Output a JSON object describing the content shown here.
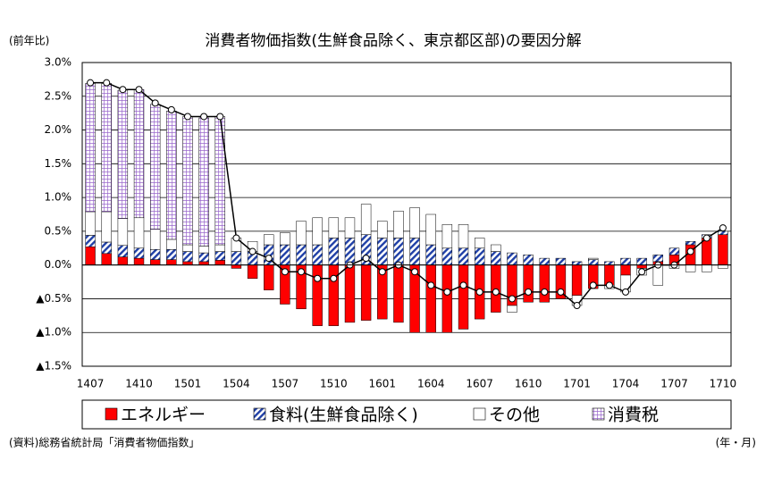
{
  "chart_data": {
    "type": "stacked_bar_line",
    "title": "消費者物価指数(生鮮食品除く、東京都区部)の要因分解",
    "y_unit_label": "(前年比)",
    "source": "(資料)総務省統計局「消費者物価指数」",
    "x_unit_label": "(年・月)",
    "categories": [
      "1407",
      null,
      null,
      "1410",
      null,
      null,
      "1501",
      null,
      null,
      "1504",
      null,
      null,
      "1507",
      null,
      null,
      "1510",
      null,
      null,
      "1601",
      null,
      null,
      "1604",
      null,
      null,
      "1607",
      null,
      null,
      "1610",
      null,
      null,
      "1701",
      null,
      null,
      "1704",
      null,
      null,
      "1707",
      null,
      null,
      "1710"
    ],
    "series": [
      {
        "name": "エネルギー",
        "color": "#ff0000",
        "pattern": "solid",
        "values": [
          0.27,
          0.17,
          0.12,
          0.1,
          0.08,
          0.08,
          0.05,
          0.05,
          0.07,
          -0.05,
          -0.2,
          -0.37,
          -0.58,
          -0.65,
          -0.9,
          -0.9,
          -0.85,
          -0.82,
          -0.8,
          -0.85,
          -1.0,
          -1.0,
          -1.0,
          -0.95,
          -0.8,
          -0.7,
          -0.6,
          -0.55,
          -0.55,
          -0.5,
          -0.45,
          -0.35,
          -0.3,
          -0.15,
          -0.05,
          0.05,
          0.15,
          0.3,
          0.4,
          0.45
        ]
      },
      {
        "name": "食料(生鮮食品除く)",
        "color": "#1f3fa6",
        "pattern": "hatch",
        "values": [
          0.17,
          0.17,
          0.17,
          0.15,
          0.15,
          0.15,
          0.15,
          0.13,
          0.13,
          0.2,
          0.2,
          0.3,
          0.3,
          0.3,
          0.3,
          0.4,
          0.4,
          0.45,
          0.4,
          0.4,
          0.4,
          0.3,
          0.25,
          0.25,
          0.25,
          0.2,
          0.18,
          0.15,
          0.1,
          0.1,
          0.05,
          0.08,
          0.05,
          0.1,
          0.1,
          0.1,
          0.1,
          0.05,
          0.05,
          0.05
        ]
      },
      {
        "name": "その他",
        "color": "#ffffff",
        "pattern": "solid",
        "values": [
          0.35,
          0.45,
          0.4,
          0.45,
          0.3,
          0.15,
          0.1,
          0.1,
          0.1,
          0.2,
          0.15,
          0.15,
          0.18,
          0.35,
          0.4,
          0.3,
          0.3,
          0.45,
          0.25,
          0.4,
          0.45,
          0.45,
          0.35,
          0.35,
          0.15,
          0.1,
          -0.1,
          0.0,
          0.0,
          0.0,
          -0.15,
          0.02,
          -0.05,
          -0.25,
          -0.1,
          -0.3,
          -0.05,
          -0.1,
          -0.1,
          -0.05
        ]
      },
      {
        "name": "消費税",
        "color": "#9966cc",
        "pattern": "grid",
        "values": [
          1.9,
          1.9,
          1.9,
          1.9,
          1.85,
          1.9,
          1.9,
          1.9,
          1.9,
          0,
          0,
          0,
          0,
          0,
          0,
          0,
          0,
          0,
          0,
          0,
          0,
          0,
          0,
          0,
          0,
          0,
          0,
          0,
          0,
          0,
          0,
          0,
          0,
          0,
          0,
          0,
          0,
          0,
          0,
          0
        ]
      }
    ],
    "line": {
      "color": "#000000",
      "values": [
        2.7,
        2.7,
        2.6,
        2.6,
        2.4,
        2.3,
        2.2,
        2.2,
        2.2,
        0.4,
        0.2,
        0.1,
        -0.1,
        -0.1,
        -0.2,
        -0.2,
        0.0,
        0.1,
        -0.1,
        0.0,
        -0.1,
        -0.3,
        -0.4,
        -0.3,
        -0.4,
        -0.4,
        -0.5,
        -0.4,
        -0.4,
        -0.4,
        -0.6,
        -0.3,
        -0.3,
        -0.4,
        -0.1,
        0.0,
        0.0,
        0.2,
        0.4,
        0.55
      ]
    },
    "ylim": [
      -1.5,
      3.0
    ],
    "yticks": [
      {
        "value": -1.5,
        "label": "▲1.5%"
      },
      {
        "value": -1.0,
        "label": "▲1.0%"
      },
      {
        "value": -0.5,
        "label": "▲0.5%"
      },
      {
        "value": 0,
        "label": "0.0%"
      },
      {
        "value": 0.5,
        "label": "0.5%"
      },
      {
        "value": 1.0,
        "label": "1.0%"
      },
      {
        "value": 1.5,
        "label": "1.5%"
      },
      {
        "value": 2.0,
        "label": "2.0%"
      },
      {
        "value": 2.5,
        "label": "2.5%"
      },
      {
        "value": 3.0,
        "label": "3.0%"
      }
    ],
    "grid": true
  }
}
